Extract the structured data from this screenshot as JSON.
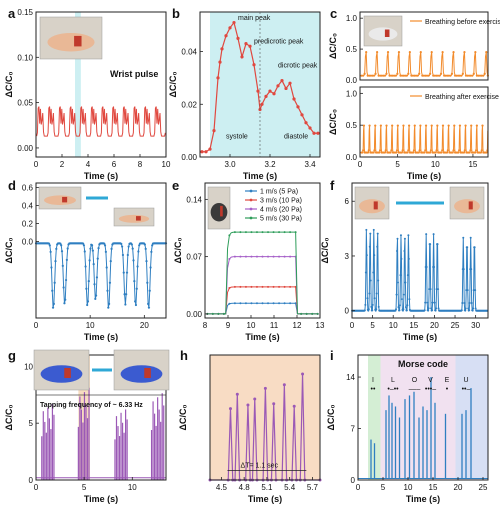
{
  "chart_data": [
    {
      "id": "a",
      "letter": "a",
      "type": "line",
      "xlabel": "Time (s)",
      "ylabel": "ΔC/C₀",
      "xlim": [
        0,
        10
      ],
      "ylim": [
        -0.01,
        0.15
      ],
      "xticks": [
        "0",
        "2",
        "4",
        "6",
        "8",
        "10"
      ],
      "yticks": [
        "0.00",
        "0.05",
        "0.10",
        "0.15"
      ],
      "annotations": [
        "Wrist pulse"
      ],
      "photo": true,
      "shade_x": [
        3.0,
        3.45
      ],
      "shade_color": "#cdeff2",
      "series": [
        {
          "color": "#e0483f",
          "marker": false,
          "period": 0.82,
          "x_start": 0.05,
          "x_end": 10,
          "base": 0.013,
          "peaks": [
            [
              0.18,
              0.041
            ],
            [
              0.36,
              0.03
            ],
            [
              0.55,
              0.028
            ]
          ]
        }
      ]
    },
    {
      "id": "b",
      "letter": "b",
      "type": "line",
      "xlabel": "Time (s)",
      "ylabel": "ΔC/C₀",
      "xlim": [
        2.85,
        3.45
      ],
      "ylim": [
        0,
        0.055
      ],
      "xticks": [
        "3.0",
        "3.2",
        "3.4"
      ],
      "yticks": [
        "0.00",
        "0.02",
        "0.04"
      ],
      "annotations": [
        "main peak",
        "predicrotic peak",
        "dicrotic peak",
        "systole",
        "diastole"
      ],
      "shade_x": [
        2.9,
        3.45
      ],
      "shade_color": "#cdeff2",
      "series": [
        {
          "color": "#e0483f",
          "marker": true,
          "x": [
            2.86,
            2.88,
            2.9,
            2.92,
            2.94,
            2.95,
            2.96,
            2.98,
            3.0,
            3.02,
            3.04,
            3.06,
            3.08,
            3.1,
            3.12,
            3.14,
            3.15,
            3.16,
            3.18,
            3.2,
            3.22,
            3.24,
            3.26,
            3.28,
            3.3,
            3.32,
            3.34,
            3.36,
            3.38,
            3.4,
            3.42,
            3.44
          ],
          "y": [
            0.002,
            0.002,
            0.003,
            0.01,
            0.03,
            0.036,
            0.041,
            0.046,
            0.049,
            0.051,
            0.045,
            0.038,
            0.043,
            0.042,
            0.035,
            0.025,
            0.018,
            0.02,
            0.023,
            0.025,
            0.024,
            0.027,
            0.029,
            0.026,
            0.028,
            0.022,
            0.019,
            0.016,
            0.013,
            0.011,
            0.009,
            0.009
          ]
        }
      ]
    },
    {
      "id": "c1",
      "letter": "c",
      "type": "line",
      "xlabel": "",
      "ylabel": "ΔC/C₀",
      "xlim": [
        0,
        17
      ],
      "ylim": [
        0,
        1.1
      ],
      "xticks": [],
      "yticks": [
        "0.0",
        "0.5",
        "1.0"
      ],
      "legend": "Breathing before exercise",
      "photo": true,
      "series": [
        {
          "color": "#f28b2c",
          "marker": true,
          "period": 1.45,
          "x_start": 0.2,
          "x_end": 17,
          "base": 0.07,
          "peaks": [
            [
              0.4,
              0.45
            ]
          ]
        }
      ]
    },
    {
      "id": "c2",
      "letter": "",
      "type": "line",
      "xlabel": "Time (s)",
      "ylabel": "ΔC/C₀",
      "xlim": [
        0,
        17
      ],
      "ylim": [
        0,
        1.1
      ],
      "xticks": [
        "0",
        "5",
        "10",
        "15"
      ],
      "yticks": [
        "0.0",
        "0.5",
        "1.0"
      ],
      "legend": "Breathing after exercise",
      "series": [
        {
          "color": "#f28b2c",
          "marker": true,
          "period": 0.75,
          "x_start": 0.2,
          "x_end": 17,
          "base": 0.07,
          "peaks": [
            [
              0.4,
              0.5
            ]
          ]
        }
      ]
    },
    {
      "id": "d",
      "letter": "d",
      "type": "line",
      "xlabel": "Time (s)",
      "ylabel": "ΔC/C₀",
      "xlim": [
        0,
        24
      ],
      "ylim": [
        -0.85,
        0.65
      ],
      "xticks": [
        "0",
        "10",
        "20"
      ],
      "yticks": [
        "0.0",
        "0.2",
        "0.4",
        "0.6"
      ],
      "photo": true,
      "series": [
        {
          "color": "#2f7fc1",
          "marker": true,
          "base": -0.02,
          "dips": [
            [
              3.2,
              -0.75
            ],
            [
              5.3,
              -0.7
            ],
            [
              9.5,
              -0.72
            ],
            [
              11.0,
              -0.65
            ],
            [
              13.4,
              -0.75
            ],
            [
              16.5,
              -0.7
            ],
            [
              18.4,
              -0.72
            ],
            [
              20.8,
              -0.75
            ]
          ],
          "x_end": 24
        }
      ]
    },
    {
      "id": "e",
      "letter": "e",
      "type": "line",
      "xlabel": "Time (s)",
      "ylabel": "ΔC/C₀",
      "xlim": [
        8,
        13
      ],
      "ylim": [
        -0.005,
        0.16
      ],
      "xticks": [
        "8",
        "9",
        "10",
        "11",
        "12",
        "13"
      ],
      "yticks": [
        "0.00",
        "0.07",
        "0.14"
      ],
      "photo": true,
      "series": [
        {
          "name": "1 m/s (5 Pa)",
          "color": "#2f7fc1",
          "level": 0.013,
          "rise": 8.9,
          "fall": 11.95,
          "marker": true
        },
        {
          "name": "3 m/s (10 Pa)",
          "color": "#e0483f",
          "level": 0.033,
          "rise": 8.9,
          "fall": 11.95,
          "marker": true
        },
        {
          "name": "4 m/s (20 Pa)",
          "color": "#a55fc8",
          "level": 0.07,
          "rise": 8.9,
          "fall": 11.95,
          "marker": true
        },
        {
          "name": "5 m/s (30 Pa)",
          "color": "#2e9d5a",
          "level": 0.1,
          "rise": 8.9,
          "fall": 11.95,
          "marker": true
        }
      ]
    },
    {
      "id": "f",
      "letter": "f",
      "type": "line",
      "xlabel": "Time (s)",
      "ylabel": "ΔC/C₀",
      "xlim": [
        0,
        33
      ],
      "ylim": [
        -0.4,
        7
      ],
      "xticks": [
        "0",
        "5",
        "10",
        "15",
        "20",
        "25",
        "30"
      ],
      "yticks": [
        "0",
        "3",
        "6"
      ],
      "photo": true,
      "series": [
        {
          "color": "#2f7fc1",
          "marker": true,
          "base": 0.0,
          "bursts": [
            [
              3.5,
              4.5
            ],
            [
              11.0,
              4.2
            ],
            [
              18.0,
              4.2
            ],
            [
              27.0,
              4.0
            ]
          ],
          "x_end": 33
        }
      ]
    },
    {
      "id": "g",
      "letter": "g",
      "type": "line",
      "xlabel": "Time (s)",
      "ylabel": "ΔC/C₀",
      "xlim": [
        0,
        13.5
      ],
      "ylim": [
        0,
        11
      ],
      "xticks": [
        "0",
        "5",
        "10"
      ],
      "yticks": [
        "0",
        "5",
        "10"
      ],
      "annotations": [
        "Tapping frequency of ~ 6.33 Hz"
      ],
      "photo": true,
      "shade_x": [
        4.4,
        5.6
      ],
      "shade_color": "#f7dcc0",
      "series": [
        {
          "color": "#9b59b6",
          "marker": false,
          "groups": [
            [
              0.6,
              2.0,
              7
            ],
            [
              4.4,
              5.6,
              8.5
            ],
            [
              8.2,
              9.6,
              6.5
            ],
            [
              12.0,
              13.4,
              8
            ]
          ]
        }
      ]
    },
    {
      "id": "h",
      "letter": "h",
      "type": "line",
      "xlabel": "Time (s)",
      "ylabel": "ΔC/C₀",
      "xlim": [
        4.35,
        5.8
      ],
      "ylim": [
        0,
        10.5
      ],
      "xticks": [
        "4.5",
        "4.8",
        "5.1",
        "5.4",
        "5.7"
      ],
      "yticks": [],
      "annotations": [
        "ΔT= 1.1 sec"
      ],
      "shade_color": "#f8dcc4",
      "series": [
        {
          "color": "#9b59b6",
          "marker": true,
          "pulses": [
            [
              4.62,
              6.0
            ],
            [
              4.71,
              7.2
            ],
            [
              4.85,
              6.3
            ],
            [
              4.94,
              6.8
            ],
            [
              5.08,
              7.7
            ],
            [
              5.19,
              6.4
            ],
            [
              5.33,
              8.0
            ],
            [
              5.46,
              6.2
            ],
            [
              5.57,
              8.9
            ]
          ]
        }
      ]
    },
    {
      "id": "i",
      "letter": "i",
      "type": "line",
      "xlabel": "Time (s)",
      "ylabel": "ΔC/C₀",
      "xlim": [
        0,
        26
      ],
      "ylim": [
        0,
        17
      ],
      "xticks": [
        "0",
        "5",
        "10",
        "15",
        "20",
        "25"
      ],
      "yticks": [
        "0",
        "7",
        "14"
      ],
      "annotations": [
        "Morse code"
      ],
      "segments": [
        {
          "x0": 2.0,
          "x1": 4.5,
          "color": "#d4eed4",
          "letter": "I",
          "code": "••"
        },
        {
          "x0": 4.5,
          "x1": 19.5,
          "color": "#f1e1f0",
          "letter": "",
          "code": ""
        },
        {
          "x0": 19.5,
          "x1": 26,
          "color": "#d7dff4",
          "letter": "",
          "code": ""
        }
      ],
      "letters": [
        {
          "t": "I",
          "x": 3.0,
          "code": "••"
        },
        {
          "t": "L",
          "x": 7.0,
          "code": "•–••"
        },
        {
          "t": "O",
          "x": 11.3,
          "code": "–––"
        },
        {
          "t": "V",
          "x": 14.5,
          "code": "•••–"
        },
        {
          "t": "E",
          "x": 17.8,
          "code": "•"
        },
        {
          "t": "U",
          "x": 21.6,
          "code": "••–"
        }
      ],
      "series": [
        {
          "color": "#2f7fc1",
          "marker": false,
          "spikes": [
            [
              2.6,
              5.5
            ],
            [
              3.3,
              5.0
            ],
            [
              5.6,
              9.5
            ],
            [
              6.2,
              11.5
            ],
            [
              6.8,
              10.5
            ],
            [
              7.5,
              10.0
            ],
            [
              8.3,
              8.5
            ],
            [
              9.4,
              11.0
            ],
            [
              10.3,
              11.5
            ],
            [
              11.2,
              12.0
            ],
            [
              12.2,
              8.5
            ],
            [
              13.0,
              10.0
            ],
            [
              13.8,
              9.5
            ],
            [
              14.6,
              14.0
            ],
            [
              15.4,
              10.5
            ],
            [
              17.5,
              9.0
            ],
            [
              20.8,
              9.0
            ],
            [
              21.6,
              9.5
            ],
            [
              22.6,
              12.5
            ]
          ]
        }
      ]
    }
  ]
}
